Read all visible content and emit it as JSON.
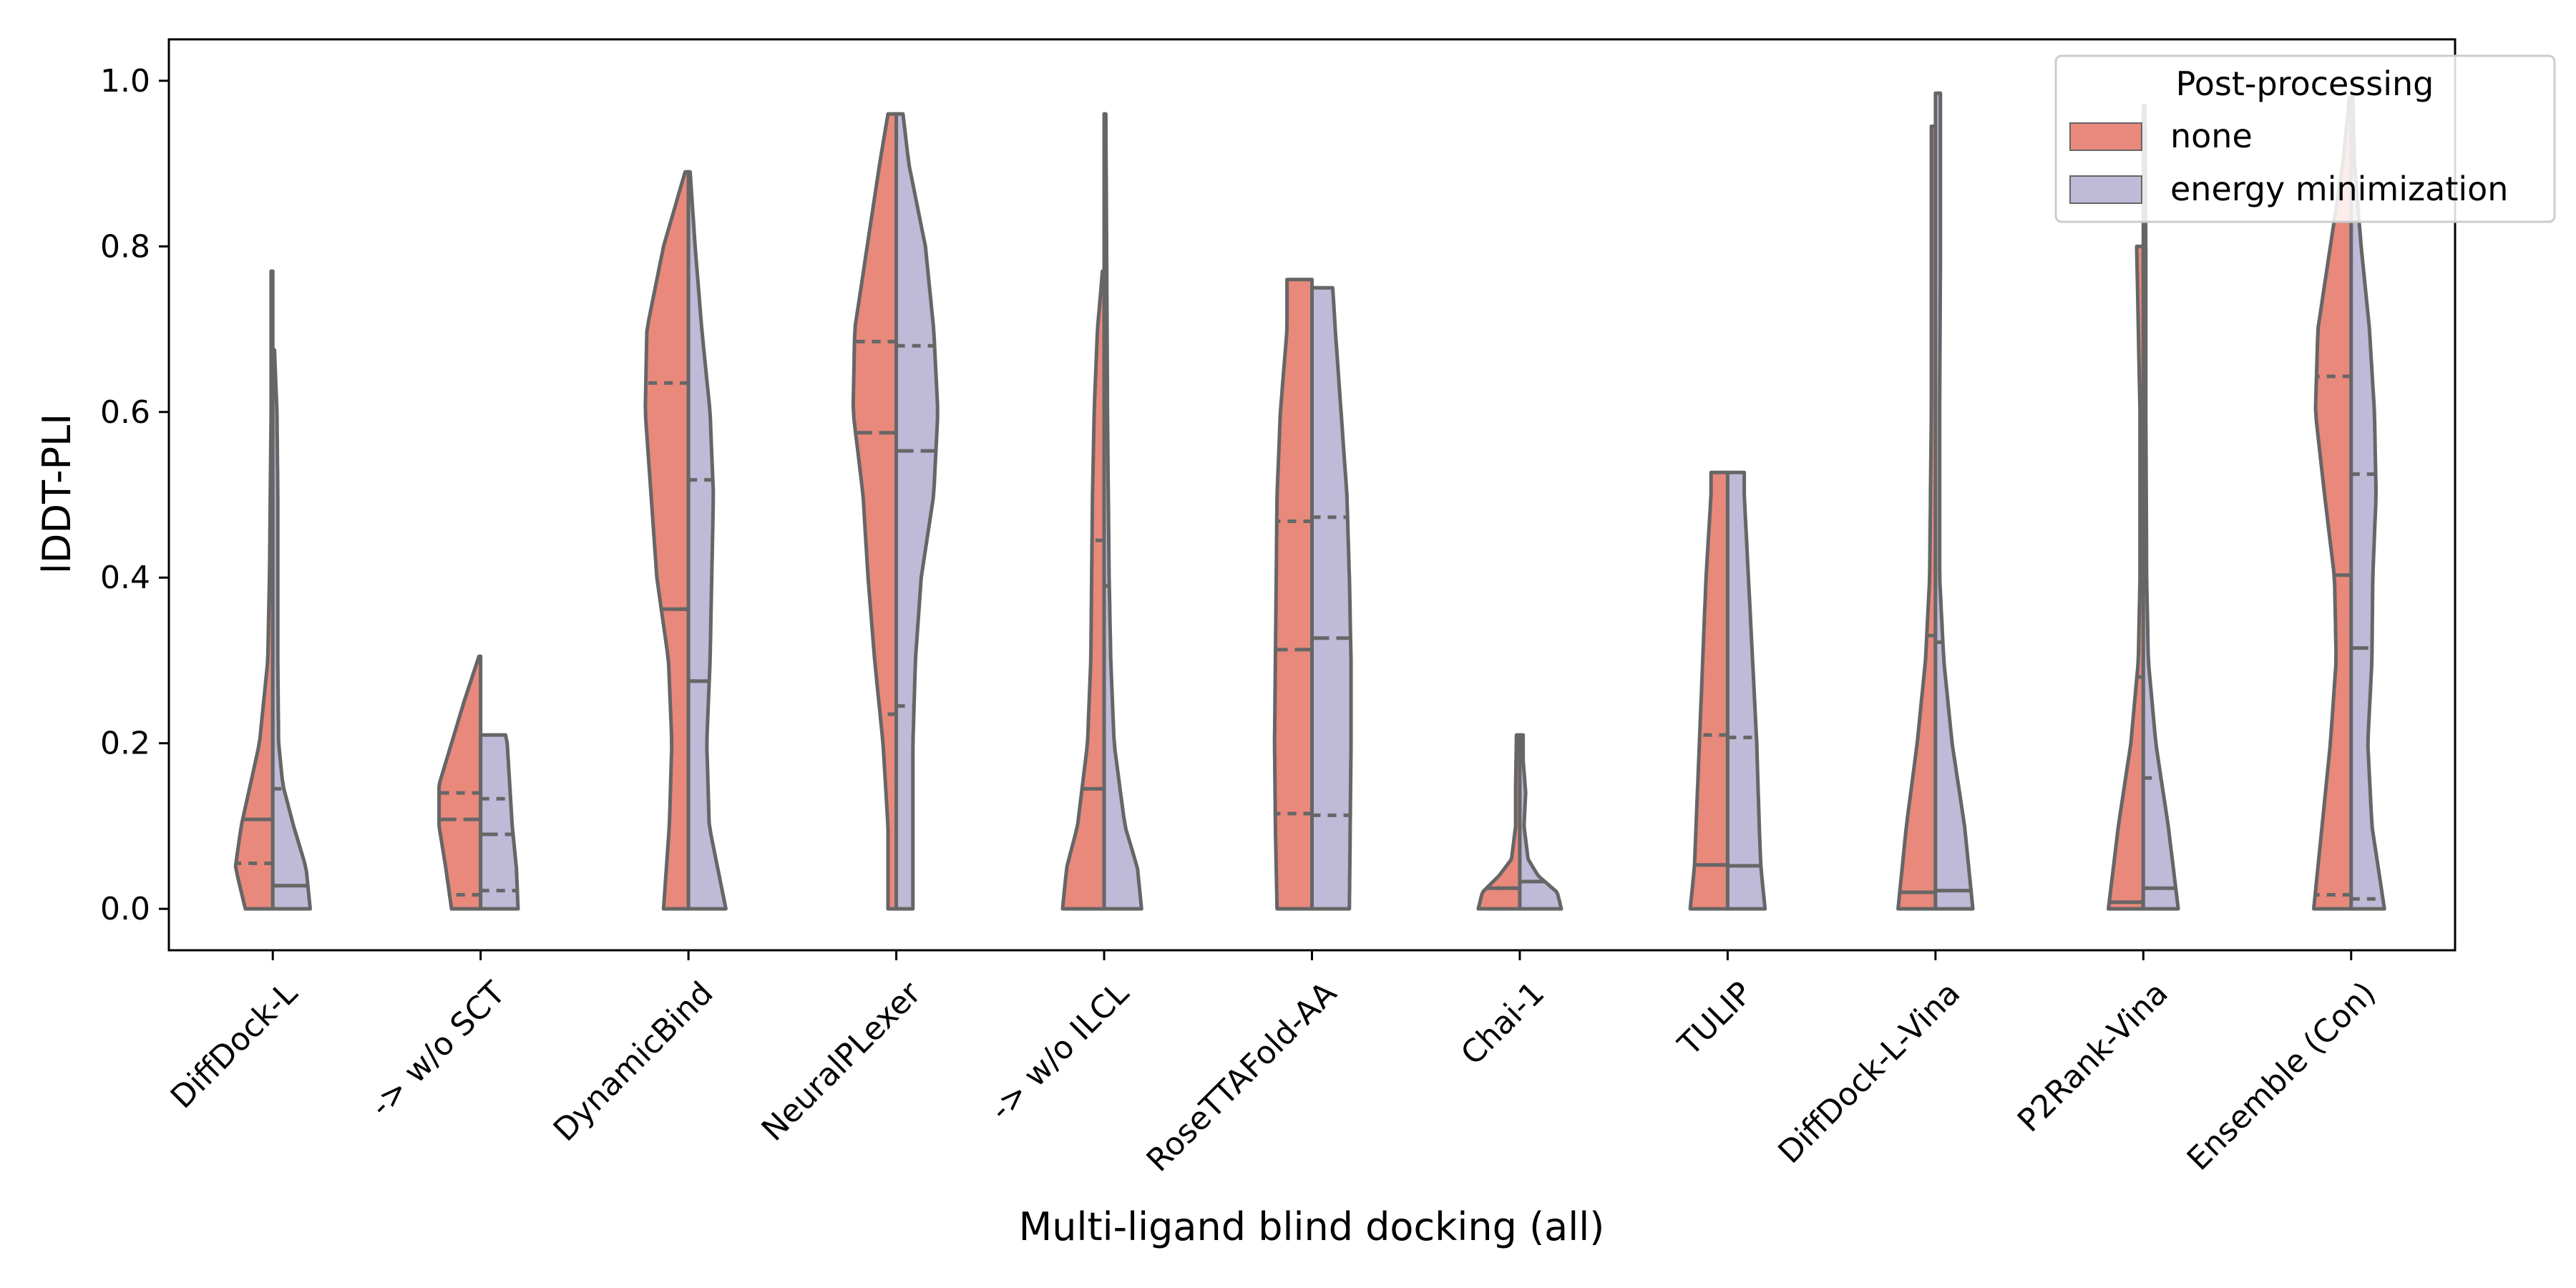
{
  "chart_data": {
    "type": "violin",
    "xlabel": "Multi-ligand blind docking (all)",
    "ylabel": "lDDT-PLI",
    "ylim": [
      -0.05,
      1.05
    ],
    "yticks": [
      "0.0",
      "0.2",
      "0.4",
      "0.6",
      "0.8",
      "1.0"
    ],
    "ytick_values": [
      0.0,
      0.2,
      0.4,
      0.6,
      0.8,
      1.0
    ],
    "categories": [
      "DiffDock-L",
      "-> w/o SCT",
      "DynamicBind",
      "NeuralPLexer",
      "-> w/o ILCL",
      "RoseTTAFold-AA",
      "Chai-1",
      "TULIP",
      "DiffDock-L-Vina",
      "P2Rank-Vina",
      "Ensemble (Con)"
    ],
    "legend": {
      "title": "Post-processing",
      "placement": "top-right"
    },
    "series": [
      {
        "name": "none",
        "color": "#E8897C",
        "side": "left",
        "violins": [
          {
            "ymin": 0.0,
            "ymax": 0.77,
            "q1": 0.055,
            "median": 0.108,
            "q3": 0.108,
            "profile": [
              [
                0,
                0.33
              ],
              [
                0.05,
                0.45
              ],
              [
                0.1,
                0.38
              ],
              [
                0.2,
                0.16
              ],
              [
                0.3,
                0.06
              ],
              [
                0.4,
                0.04
              ],
              [
                0.6,
                0.02
              ],
              [
                0.7,
                0.02
              ],
              [
                0.77,
                0.02
              ]
            ]
          },
          {
            "ymin": 0.0,
            "ymax": 0.305,
            "q1": 0.017,
            "median": 0.108,
            "q3": 0.14,
            "profile": [
              [
                0,
                0.35
              ],
              [
                0.05,
                0.42
              ],
              [
                0.1,
                0.5
              ],
              [
                0.15,
                0.5
              ],
              [
                0.2,
                0.35
              ],
              [
                0.25,
                0.2
              ],
              [
                0.305,
                0.02
              ]
            ]
          },
          {
            "ymin": 0.0,
            "ymax": 0.89,
            "q1": 0.362,
            "median": 0.362,
            "q3": 0.635,
            "profile": [
              [
                0,
                0.3
              ],
              [
                0.1,
                0.23
              ],
              [
                0.2,
                0.2
              ],
              [
                0.3,
                0.24
              ],
              [
                0.4,
                0.38
              ],
              [
                0.5,
                0.45
              ],
              [
                0.6,
                0.52
              ],
              [
                0.7,
                0.5
              ],
              [
                0.8,
                0.3
              ],
              [
                0.89,
                0.04
              ]
            ]
          },
          {
            "ymin": 0.0,
            "ymax": 0.96,
            "q1": 0.235,
            "median": 0.575,
            "q3": 0.685,
            "profile": [
              [
                0,
                0.1
              ],
              [
                0.1,
                0.1
              ],
              [
                0.2,
                0.16
              ],
              [
                0.3,
                0.26
              ],
              [
                0.4,
                0.34
              ],
              [
                0.5,
                0.4
              ],
              [
                0.6,
                0.52
              ],
              [
                0.7,
                0.5
              ],
              [
                0.8,
                0.35
              ],
              [
                0.9,
                0.2
              ],
              [
                0.96,
                0.1
              ]
            ]
          },
          {
            "ymin": 0.0,
            "ymax": 0.77,
            "q1": 0.145,
            "median": 0.145,
            "q3": 0.445,
            "profile": [
              [
                0,
                0.5
              ],
              [
                0.05,
                0.45
              ],
              [
                0.1,
                0.32
              ],
              [
                0.2,
                0.2
              ],
              [
                0.3,
                0.16
              ],
              [
                0.4,
                0.15
              ],
              [
                0.5,
                0.14
              ],
              [
                0.6,
                0.12
              ],
              [
                0.7,
                0.08
              ],
              [
                0.77,
                0.02
              ]
            ]
          },
          {
            "ymin": 0.0,
            "ymax": 0.76,
            "q1": 0.115,
            "median": 0.313,
            "q3": 0.468,
            "profile": [
              [
                0,
                0.42
              ],
              [
                0.1,
                0.44
              ],
              [
                0.2,
                0.45
              ],
              [
                0.3,
                0.44
              ],
              [
                0.4,
                0.43
              ],
              [
                0.5,
                0.42
              ],
              [
                0.6,
                0.38
              ],
              [
                0.7,
                0.3
              ],
              [
                0.76,
                0.3
              ]
            ]
          },
          {
            "ymin": 0.0,
            "ymax": 0.21,
            "q1": 0.025,
            "median": 0.025,
            "q3": 0.025,
            "profile": [
              [
                0,
                0.5
              ],
              [
                0.02,
                0.45
              ],
              [
                0.04,
                0.25
              ],
              [
                0.06,
                0.1
              ],
              [
                0.1,
                0.05
              ],
              [
                0.15,
                0.05
              ],
              [
                0.21,
                0.04
              ]
            ]
          },
          {
            "ymin": 0.0,
            "ymax": 0.527,
            "q1": 0.053,
            "median": 0.053,
            "q3": 0.21,
            "profile": [
              [
                0,
                0.45
              ],
              [
                0.05,
                0.4
              ],
              [
                0.1,
                0.38
              ],
              [
                0.2,
                0.34
              ],
              [
                0.3,
                0.3
              ],
              [
                0.4,
                0.26
              ],
              [
                0.5,
                0.2
              ],
              [
                0.527,
                0.2
              ]
            ]
          },
          {
            "ymin": 0.0,
            "ymax": 0.945,
            "q1": 0.02,
            "median": 0.02,
            "q3": 0.33,
            "profile": [
              [
                0,
                0.45
              ],
              [
                0.1,
                0.35
              ],
              [
                0.2,
                0.22
              ],
              [
                0.3,
                0.12
              ],
              [
                0.4,
                0.07
              ],
              [
                0.6,
                0.05
              ],
              [
                0.8,
                0.05
              ],
              [
                0.945,
                0.05
              ]
            ]
          },
          {
            "ymin": 0.0,
            "ymax": 0.8,
            "q1": 0.008,
            "median": 0.008,
            "q3": 0.28,
            "profile": [
              [
                0,
                0.42
              ],
              [
                0.1,
                0.3
              ],
              [
                0.2,
                0.15
              ],
              [
                0.3,
                0.06
              ],
              [
                0.4,
                0.04
              ],
              [
                0.6,
                0.04
              ],
              [
                0.8,
                0.08
              ]
            ]
          },
          {
            "ymin": 0.0,
            "ymax": 0.98,
            "q1": 0.017,
            "median": 0.403,
            "q3": 0.643,
            "profile": [
              [
                0,
                0.45
              ],
              [
                0.1,
                0.35
              ],
              [
                0.2,
                0.25
              ],
              [
                0.3,
                0.18
              ],
              [
                0.4,
                0.2
              ],
              [
                0.5,
                0.32
              ],
              [
                0.6,
                0.43
              ],
              [
                0.7,
                0.4
              ],
              [
                0.8,
                0.25
              ],
              [
                0.9,
                0.1
              ],
              [
                0.98,
                0.02
              ]
            ]
          }
        ]
      },
      {
        "name": "energy minimization",
        "color": "#BEBAD8",
        "side": "right",
        "violins": [
          {
            "ymin": 0.0,
            "ymax": 0.675,
            "q1": 0.028,
            "median": 0.028,
            "q3": 0.145,
            "profile": [
              [
                0,
                0.45
              ],
              [
                0.05,
                0.4
              ],
              [
                0.1,
                0.25
              ],
              [
                0.15,
                0.12
              ],
              [
                0.2,
                0.07
              ],
              [
                0.3,
                0.06
              ],
              [
                0.4,
                0.06
              ],
              [
                0.5,
                0.06
              ],
              [
                0.6,
                0.05
              ],
              [
                0.675,
                0.02
              ]
            ]
          },
          {
            "ymin": 0.0,
            "ymax": 0.21,
            "q1": 0.022,
            "median": 0.09,
            "q3": 0.133,
            "profile": [
              [
                0,
                0.45
              ],
              [
                0.05,
                0.43
              ],
              [
                0.1,
                0.38
              ],
              [
                0.15,
                0.35
              ],
              [
                0.2,
                0.32
              ],
              [
                0.21,
                0.3
              ]
            ]
          },
          {
            "ymin": 0.0,
            "ymax": 0.89,
            "q1": 0.275,
            "median": 0.275,
            "q3": 0.518,
            "profile": [
              [
                0,
                0.45
              ],
              [
                0.1,
                0.25
              ],
              [
                0.2,
                0.22
              ],
              [
                0.3,
                0.26
              ],
              [
                0.4,
                0.28
              ],
              [
                0.5,
                0.3
              ],
              [
                0.6,
                0.26
              ],
              [
                0.7,
                0.16
              ],
              [
                0.8,
                0.08
              ],
              [
                0.89,
                0.02
              ]
            ]
          },
          {
            "ymin": 0.0,
            "ymax": 0.96,
            "q1": 0.245,
            "median": 0.553,
            "q3": 0.68,
            "profile": [
              [
                0,
                0.2
              ],
              [
                0.1,
                0.2
              ],
              [
                0.2,
                0.2
              ],
              [
                0.3,
                0.23
              ],
              [
                0.4,
                0.3
              ],
              [
                0.5,
                0.45
              ],
              [
                0.6,
                0.5
              ],
              [
                0.7,
                0.45
              ],
              [
                0.8,
                0.35
              ],
              [
                0.9,
                0.15
              ],
              [
                0.96,
                0.08
              ]
            ]
          },
          {
            "ymin": 0.0,
            "ymax": 0.96,
            "q1": 0.39,
            "median": 0.39,
            "q3": 0.39,
            "profile": [
              [
                0,
                0.45
              ],
              [
                0.05,
                0.4
              ],
              [
                0.1,
                0.25
              ],
              [
                0.2,
                0.12
              ],
              [
                0.3,
                0.08
              ],
              [
                0.4,
                0.06
              ],
              [
                0.5,
                0.05
              ],
              [
                0.6,
                0.04
              ],
              [
                0.8,
                0.03
              ],
              [
                0.96,
                0.02
              ]
            ]
          },
          {
            "ymin": 0.0,
            "ymax": 0.75,
            "q1": 0.113,
            "median": 0.327,
            "q3": 0.473,
            "profile": [
              [
                0,
                0.45
              ],
              [
                0.1,
                0.46
              ],
              [
                0.2,
                0.47
              ],
              [
                0.3,
                0.47
              ],
              [
                0.4,
                0.45
              ],
              [
                0.5,
                0.42
              ],
              [
                0.6,
                0.35
              ],
              [
                0.7,
                0.28
              ],
              [
                0.75,
                0.25
              ]
            ]
          },
          {
            "ymin": 0.0,
            "ymax": 0.21,
            "q1": 0.033,
            "median": 0.033,
            "q3": 0.033,
            "profile": [
              [
                0,
                0.5
              ],
              [
                0.02,
                0.45
              ],
              [
                0.04,
                0.22
              ],
              [
                0.06,
                0.1
              ],
              [
                0.1,
                0.05
              ],
              [
                0.14,
                0.07
              ],
              [
                0.18,
                0.04
              ],
              [
                0.21,
                0.04
              ]
            ]
          },
          {
            "ymin": 0.0,
            "ymax": 0.527,
            "q1": 0.052,
            "median": 0.052,
            "q3": 0.207,
            "profile": [
              [
                0,
                0.45
              ],
              [
                0.05,
                0.4
              ],
              [
                0.1,
                0.38
              ],
              [
                0.2,
                0.35
              ],
              [
                0.3,
                0.3
              ],
              [
                0.4,
                0.25
              ],
              [
                0.5,
                0.2
              ],
              [
                0.527,
                0.2
              ]
            ]
          },
          {
            "ymin": 0.0,
            "ymax": 0.985,
            "q1": 0.022,
            "median": 0.022,
            "q3": 0.322,
            "profile": [
              [
                0,
                0.45
              ],
              [
                0.1,
                0.35
              ],
              [
                0.2,
                0.2
              ],
              [
                0.3,
                0.1
              ],
              [
                0.4,
                0.05
              ],
              [
                0.6,
                0.05
              ],
              [
                0.8,
                0.06
              ],
              [
                0.985,
                0.06
              ]
            ]
          },
          {
            "ymin": 0.0,
            "ymax": 0.97,
            "q1": 0.025,
            "median": 0.025,
            "q3": 0.158,
            "profile": [
              [
                0,
                0.42
              ],
              [
                0.1,
                0.3
              ],
              [
                0.2,
                0.15
              ],
              [
                0.3,
                0.06
              ],
              [
                0.4,
                0.04
              ],
              [
                0.6,
                0.03
              ],
              [
                0.8,
                0.03
              ],
              [
                0.97,
                0.02
              ]
            ]
          },
          {
            "ymin": 0.0,
            "ymax": 0.98,
            "q1": 0.012,
            "median": 0.315,
            "q3": 0.525,
            "profile": [
              [
                0,
                0.4
              ],
              [
                0.1,
                0.25
              ],
              [
                0.2,
                0.2
              ],
              [
                0.3,
                0.25
              ],
              [
                0.4,
                0.26
              ],
              [
                0.5,
                0.3
              ],
              [
                0.6,
                0.28
              ],
              [
                0.7,
                0.22
              ],
              [
                0.8,
                0.12
              ],
              [
                0.9,
                0.04
              ],
              [
                0.98,
                0.02
              ]
            ]
          }
        ]
      }
    ]
  }
}
